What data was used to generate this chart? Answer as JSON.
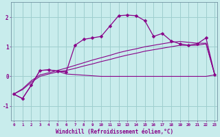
{
  "xlabel": "Windchill (Refroidissement éolien,°C)",
  "background_color": "#c8ecec",
  "grid_color": "#9ecece",
  "line_color": "#880088",
  "hours": [
    0,
    1,
    2,
    3,
    4,
    5,
    6,
    7,
    8,
    9,
    10,
    11,
    12,
    13,
    14,
    15,
    16,
    17,
    18,
    19,
    20,
    21,
    22,
    23
  ],
  "windchill": [
    -0.6,
    -0.75,
    -0.3,
    0.2,
    0.22,
    0.18,
    0.15,
    1.05,
    1.25,
    1.3,
    1.35,
    1.7,
    2.05,
    2.07,
    2.05,
    1.88,
    1.35,
    1.45,
    1.2,
    1.1,
    1.05,
    1.1,
    1.3,
    0.05
  ],
  "flat_line": [
    -0.6,
    -0.75,
    -0.3,
    0.2,
    0.22,
    0.18,
    0.08,
    0.06,
    0.04,
    0.02,
    0.0,
    0.0,
    0.0,
    0.0,
    0.0,
    0.0,
    0.0,
    0.0,
    0.0,
    0.0,
    0.0,
    0.0,
    0.0,
    0.05
  ],
  "trend1": [
    -0.6,
    -0.45,
    -0.2,
    0.0,
    0.08,
    0.15,
    0.2,
    0.27,
    0.35,
    0.42,
    0.5,
    0.57,
    0.65,
    0.72,
    0.78,
    0.85,
    0.9,
    0.95,
    1.0,
    1.05,
    1.05,
    1.05,
    1.1,
    0.05
  ],
  "trend2": [
    -0.6,
    -0.42,
    -0.15,
    0.05,
    0.12,
    0.2,
    0.28,
    0.37,
    0.46,
    0.55,
    0.63,
    0.71,
    0.8,
    0.87,
    0.93,
    1.0,
    1.05,
    1.1,
    1.15,
    1.18,
    1.15,
    1.12,
    1.12,
    0.05
  ],
  "ylim": [
    -1.5,
    2.5
  ],
  "xlim": [
    -0.3,
    23.3
  ],
  "yticks": [
    -1,
    0,
    1,
    2
  ],
  "xticks": [
    0,
    1,
    2,
    3,
    4,
    5,
    6,
    7,
    8,
    9,
    10,
    11,
    12,
    13,
    14,
    15,
    16,
    17,
    18,
    19,
    20,
    21,
    22,
    23
  ]
}
